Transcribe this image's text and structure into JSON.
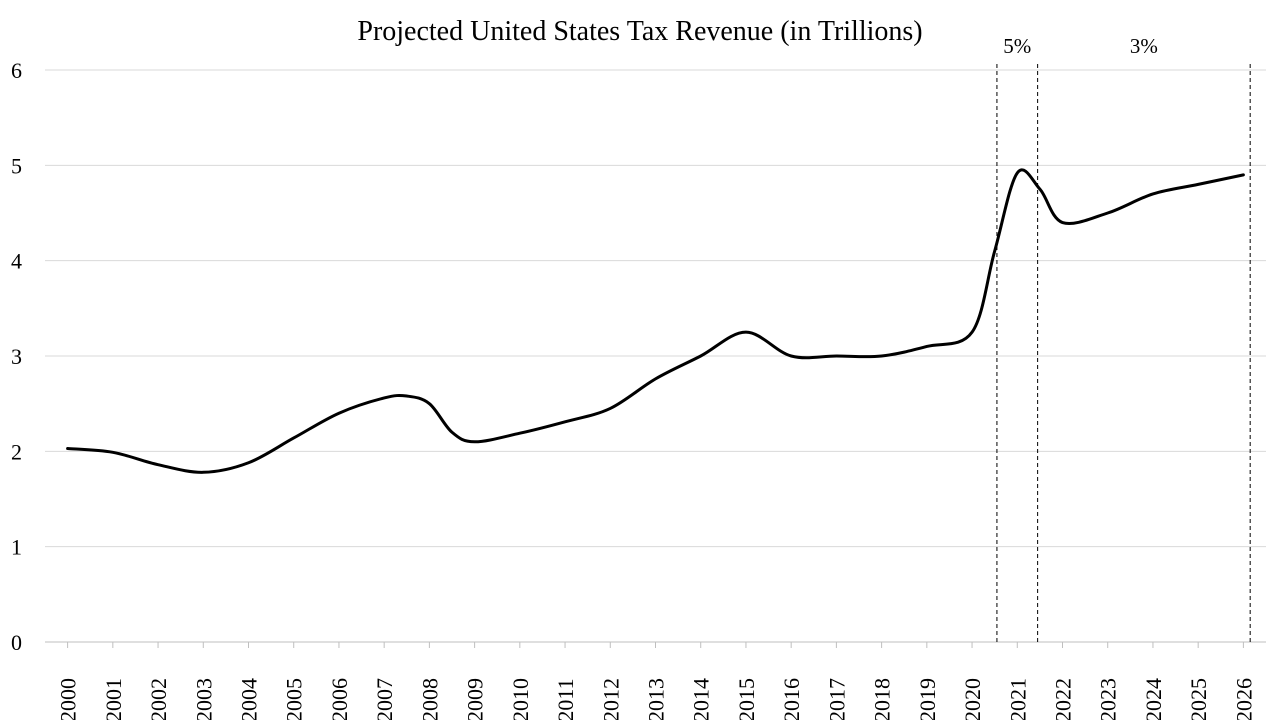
{
  "chart_data": {
    "type": "line",
    "title": "Projected United States Tax Revenue (in Trillions)",
    "xlabel": "",
    "ylabel": "",
    "ylim": [
      0,
      6
    ],
    "yticks": [
      0,
      1,
      2,
      3,
      4,
      5,
      6
    ],
    "grid": true,
    "legend": "none",
    "smooth": true,
    "line_color": "#000000",
    "categories": [
      "2000",
      "2001",
      "2002",
      "2003",
      "2004",
      "2005",
      "2006",
      "2007",
      "2008",
      "2009",
      "2010",
      "2011",
      "2012",
      "2013",
      "2014",
      "2015",
      "2016",
      "2017",
      "2018",
      "2019",
      "2020",
      "2021",
      "2022",
      "2023",
      "2024",
      "2025",
      "2026"
    ],
    "points": [
      {
        "x": 2000.0,
        "y": 2.03
      },
      {
        "x": 2001.0,
        "y": 1.99
      },
      {
        "x": 2002.0,
        "y": 1.86
      },
      {
        "x": 2003.0,
        "y": 1.78
      },
      {
        "x": 2004.0,
        "y": 1.88
      },
      {
        "x": 2005.0,
        "y": 2.14
      },
      {
        "x": 2006.0,
        "y": 2.4
      },
      {
        "x": 2007.0,
        "y": 2.56
      },
      {
        "x": 2007.5,
        "y": 2.58
      },
      {
        "x": 2008.0,
        "y": 2.5
      },
      {
        "x": 2008.5,
        "y": 2.2
      },
      {
        "x": 2009.0,
        "y": 2.1
      },
      {
        "x": 2010.0,
        "y": 2.19
      },
      {
        "x": 2011.0,
        "y": 2.31
      },
      {
        "x": 2012.0,
        "y": 2.45
      },
      {
        "x": 2013.0,
        "y": 2.76
      },
      {
        "x": 2014.0,
        "y": 3.0
      },
      {
        "x": 2015.0,
        "y": 3.25
      },
      {
        "x": 2016.0,
        "y": 3.0
      },
      {
        "x": 2017.0,
        "y": 3.0
      },
      {
        "x": 2018.0,
        "y": 3.0
      },
      {
        "x": 2019.0,
        "y": 3.1
      },
      {
        "x": 2020.0,
        "y": 3.25
      },
      {
        "x": 2020.5,
        "y": 4.1
      },
      {
        "x": 2021.0,
        "y": 4.92
      },
      {
        "x": 2021.5,
        "y": 4.75
      },
      {
        "x": 2022.0,
        "y": 4.4
      },
      {
        "x": 2023.0,
        "y": 4.5
      },
      {
        "x": 2024.0,
        "y": 4.7
      },
      {
        "x": 2025.0,
        "y": 4.8
      },
      {
        "x": 2026.0,
        "y": 4.9
      }
    ],
    "reference_lines": [
      {
        "x": 2020.55,
        "style": "dashed"
      },
      {
        "x": 2021.45,
        "style": "dashed"
      },
      {
        "x": 2026.15,
        "style": "dashed"
      }
    ],
    "annotations": [
      {
        "text": "5%",
        "x": 2021.0,
        "y": 6.25
      },
      {
        "text": "3%",
        "x": 2023.8,
        "y": 6.25
      }
    ]
  }
}
